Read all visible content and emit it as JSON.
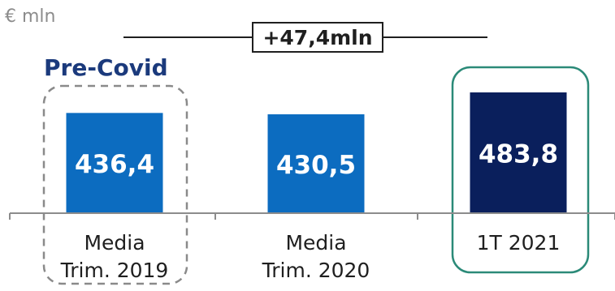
{
  "unit_label": "€ mln",
  "callout_label": "Pre-Covid",
  "delta_label": "+47,4mln",
  "colors": {
    "bar_light": "#0c6cc0",
    "bar_dark": "#0a1f5c",
    "precovid_text": "#1b3a7c",
    "highlight_border": "#2b8a78"
  },
  "chart_data": {
    "type": "bar",
    "categories": [
      "Media\nTrim. 2019",
      "Media\nTrim. 2020",
      "1T 2021"
    ],
    "values": [
      436.4,
      430.5,
      483.8
    ],
    "value_labels": [
      "436,4",
      "430,5",
      "483,8"
    ],
    "ylim": [
      0,
      483.8
    ],
    "title": "",
    "xlabel": "",
    "ylabel": "€ mln",
    "annotation": "+47,4mln"
  }
}
